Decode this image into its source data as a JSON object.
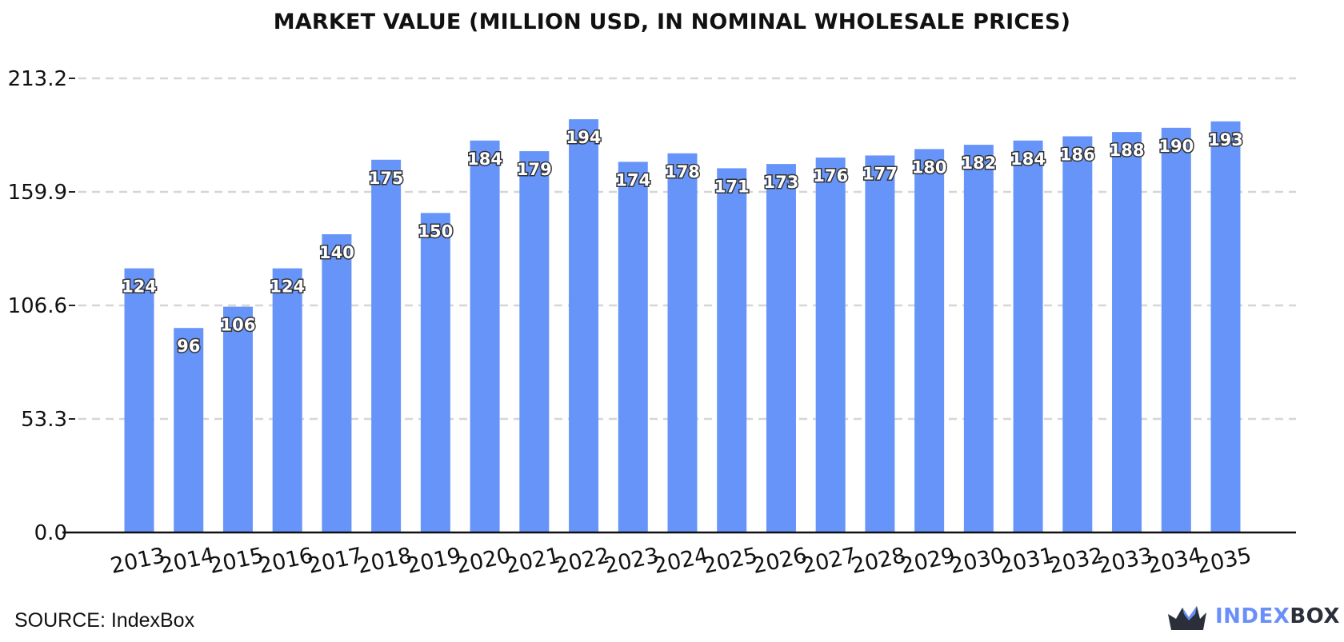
{
  "chart_data": {
    "type": "bar",
    "title": "MARKET VALUE (MILLION USD, IN NOMINAL WHOLESALE PRICES)",
    "categories": [
      "2013",
      "2014",
      "2015",
      "2016",
      "2017",
      "2018",
      "2019",
      "2020",
      "2021",
      "2022",
      "2023",
      "2024",
      "2025",
      "2026",
      "2027",
      "2028",
      "2029",
      "2030",
      "2031",
      "2032",
      "2033",
      "2034",
      "2035"
    ],
    "values": [
      124,
      96,
      106,
      124,
      140,
      175,
      150,
      184,
      179,
      194,
      174,
      178,
      171,
      173,
      176,
      177,
      180,
      182,
      184,
      186,
      188,
      190,
      193
    ],
    "y_ticks": [
      "0.0",
      "53.3",
      "106.6",
      "159.9",
      "213.2"
    ],
    "ylim": [
      0,
      213.2
    ],
    "grid": true,
    "bar_color": "#6694f9",
    "data_labels": true
  },
  "footer": {
    "source": "SOURCE: IndexBox",
    "brand_part1": "INDEX",
    "brand_part2": "BOX"
  }
}
